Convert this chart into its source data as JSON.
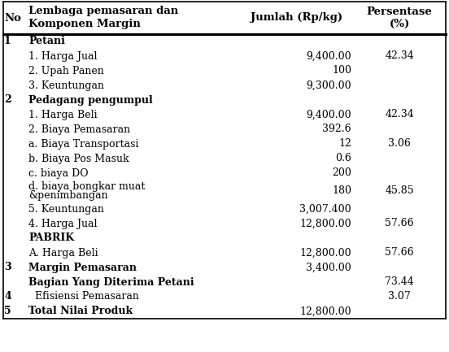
{
  "col_headers": [
    "No",
    "Lembaga pemasaran dan\nKomponen Margin",
    "Jumlah (Rp/kg)",
    "Persentase\n(%)"
  ],
  "rows": [
    {
      "no": "1",
      "label": "Petani",
      "jumlah": "",
      "persen": "",
      "bold_label": true,
      "bold_no": true
    },
    {
      "no": "",
      "label": "1. Harga Jual",
      "jumlah": "9,400.00",
      "persen": "42.34",
      "bold_label": false,
      "bold_no": false
    },
    {
      "no": "",
      "label": "2. Upah Panen",
      "jumlah": "100",
      "persen": "",
      "bold_label": false,
      "bold_no": false
    },
    {
      "no": "",
      "label": "3. Keuntungan",
      "jumlah": "9,300.00",
      "persen": "",
      "bold_label": false,
      "bold_no": false
    },
    {
      "no": "2",
      "label": "Pedagang pengumpul",
      "jumlah": "",
      "persen": "",
      "bold_label": true,
      "bold_no": true
    },
    {
      "no": "",
      "label": "1. Harga Beli",
      "jumlah": "9,400.00",
      "persen": "42.34",
      "bold_label": false,
      "bold_no": false
    },
    {
      "no": "",
      "label": "2. Biaya Pemasaran",
      "jumlah": "392.6",
      "persen": "",
      "bold_label": false,
      "bold_no": false
    },
    {
      "no": "",
      "label": "a. Biaya Transportasi",
      "jumlah": "12",
      "persen": "3.06",
      "bold_label": false,
      "bold_no": false
    },
    {
      "no": "",
      "label": "b. Biaya Pos Masuk",
      "jumlah": "0.6",
      "persen": "",
      "bold_label": false,
      "bold_no": false
    },
    {
      "no": "",
      "label": "c. biaya DO",
      "jumlah": "200",
      "persen": "",
      "bold_label": false,
      "bold_no": false
    },
    {
      "no": "",
      "label": "d. biaya bongkar muat\n    &penimbangan",
      "jumlah": "180",
      "persen": "45.85",
      "bold_label": false,
      "bold_no": false
    },
    {
      "no": "",
      "label": "5. Keuntungan",
      "jumlah": "3,007.400",
      "persen": "",
      "bold_label": false,
      "bold_no": false
    },
    {
      "no": "",
      "label": "4. Harga Jual",
      "jumlah": "12,800.00",
      "persen": "57.66",
      "bold_label": false,
      "bold_no": false
    },
    {
      "no": "",
      "label": "PABRIK",
      "jumlah": "",
      "persen": "",
      "bold_label": true,
      "bold_no": false
    },
    {
      "no": "",
      "label": "A. Harga Beli",
      "jumlah": "12,800.00",
      "persen": "57.66",
      "bold_label": false,
      "bold_no": false
    },
    {
      "no": "3",
      "label": "Margin Pemasaran",
      "jumlah": "3,400.00",
      "persen": "",
      "bold_label": true,
      "bold_no": true
    },
    {
      "no": "",
      "label": "Bagian Yang Diterima Petani",
      "jumlah": "",
      "persen": "73.44",
      "bold_label": true,
      "bold_no": false
    },
    {
      "no": "4",
      "label": "  Efisiensi Pemasaran",
      "jumlah": "",
      "persen": "3.07",
      "bold_label": false,
      "bold_no": true
    },
    {
      "no": "5",
      "label": "Total Nilai Produk",
      "jumlah": "12,800.00",
      "persen": "",
      "bold_label": true,
      "bold_no": true
    }
  ],
  "bg_color": "#ffffff",
  "text_color": "#000000",
  "font_size": 9.0,
  "header_font_size": 9.5,
  "serif_font": "DejaVu Serif"
}
